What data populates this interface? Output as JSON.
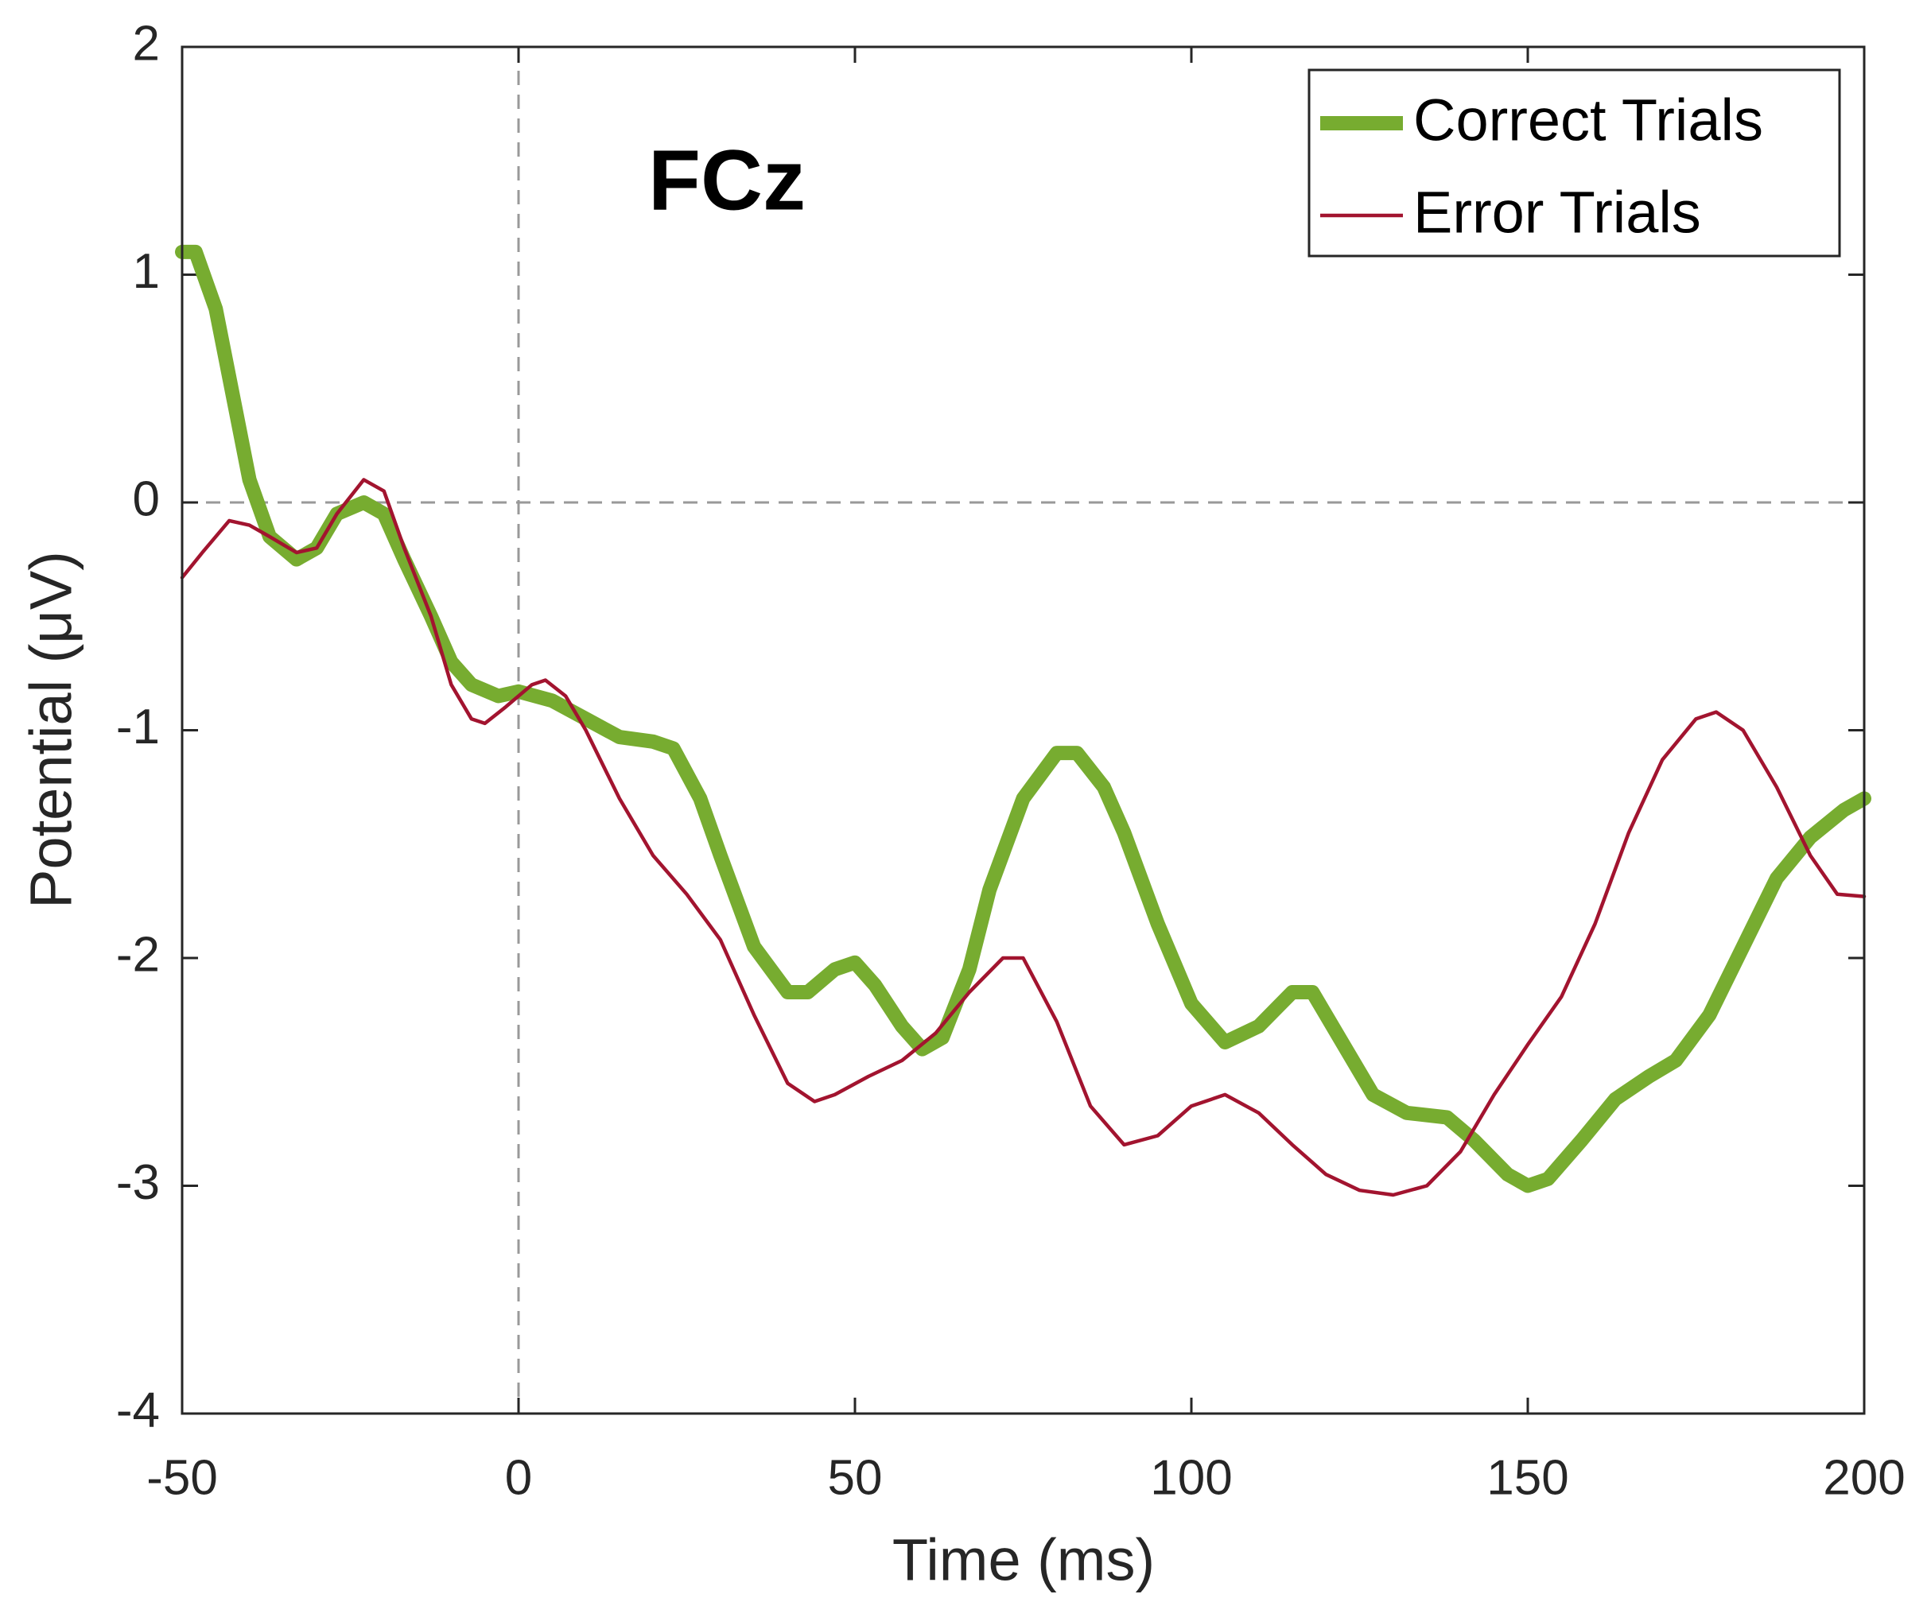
{
  "chart_data": {
    "type": "line",
    "annotation": "FCz",
    "xlabel": "Time (ms)",
    "ylabel": "Potential (μV)",
    "xlim": [
      -50,
      200
    ],
    "ylim": [
      -4,
      2
    ],
    "xticks": [
      -50,
      0,
      50,
      100,
      150,
      200
    ],
    "yticks": [
      -4,
      -3,
      -2,
      -1,
      0,
      1,
      2
    ],
    "legend": "upper right",
    "series": [
      {
        "name": "Correct Trials",
        "color": "#77ac30",
        "x": [
          -50,
          -48,
          -45,
          -42,
          -40,
          -37,
          -33,
          -30,
          -27,
          -23,
          -20,
          -17,
          -13,
          -10,
          -7,
          -3,
          0,
          5,
          10,
          15,
          20,
          23,
          27,
          30,
          35,
          40,
          43,
          47,
          50,
          53,
          57,
          60,
          63,
          67,
          70,
          75,
          80,
          83,
          87,
          90,
          95,
          100,
          105,
          110,
          115,
          118,
          122,
          127,
          132,
          138,
          142,
          147,
          150,
          153,
          158,
          163,
          168,
          172,
          177,
          182,
          187,
          192,
          197,
          200
        ],
        "values": [
          1.1,
          1.1,
          0.85,
          0.4,
          0.1,
          -0.15,
          -0.25,
          -0.2,
          -0.05,
          0.0,
          -0.05,
          -0.25,
          -0.5,
          -0.7,
          -0.8,
          -0.85,
          -0.83,
          -0.87,
          -0.95,
          -1.03,
          -1.05,
          -1.08,
          -1.3,
          -1.55,
          -1.95,
          -2.15,
          -2.15,
          -2.05,
          -2.02,
          -2.12,
          -2.3,
          -2.4,
          -2.35,
          -2.05,
          -1.7,
          -1.3,
          -1.1,
          -1.1,
          -1.25,
          -1.45,
          -1.85,
          -2.2,
          -2.37,
          -2.3,
          -2.15,
          -2.15,
          -2.35,
          -2.6,
          -2.68,
          -2.7,
          -2.8,
          -2.95,
          -3.0,
          -2.97,
          -2.8,
          -2.62,
          -2.52,
          -2.45,
          -2.25,
          -1.95,
          -1.65,
          -1.47,
          -1.35,
          -1.3
        ]
      },
      {
        "name": "Error Trials",
        "color": "#a2142f",
        "x": [
          -50,
          -47,
          -43,
          -40,
          -37,
          -33,
          -30,
          -27,
          -23,
          -20,
          -17,
          -13,
          -10,
          -7,
          -5,
          -2,
          2,
          4,
          7,
          10,
          15,
          20,
          25,
          30,
          35,
          40,
          44,
          47,
          52,
          57,
          62,
          67,
          72,
          75,
          80,
          85,
          90,
          95,
          100,
          105,
          110,
          115,
          120,
          125,
          130,
          135,
          140,
          145,
          150,
          155,
          160,
          165,
          170,
          175,
          178,
          182,
          187,
          192,
          196,
          200
        ],
        "values": [
          -0.33,
          -0.22,
          -0.08,
          -0.1,
          -0.15,
          -0.22,
          -0.2,
          -0.05,
          0.1,
          0.05,
          -0.2,
          -0.5,
          -0.8,
          -0.95,
          -0.97,
          -0.9,
          -0.8,
          -0.78,
          -0.85,
          -1.0,
          -1.3,
          -1.55,
          -1.72,
          -1.92,
          -2.25,
          -2.55,
          -2.63,
          -2.6,
          -2.52,
          -2.45,
          -2.33,
          -2.15,
          -2.0,
          -2.0,
          -2.28,
          -2.65,
          -2.82,
          -2.78,
          -2.65,
          -2.6,
          -2.68,
          -2.82,
          -2.95,
          -3.02,
          -3.04,
          -3.0,
          -2.85,
          -2.6,
          -2.38,
          -2.17,
          -1.85,
          -1.45,
          -1.13,
          -0.95,
          -0.92,
          -1.0,
          -1.25,
          -1.55,
          -1.72,
          -1.73
        ]
      }
    ]
  }
}
